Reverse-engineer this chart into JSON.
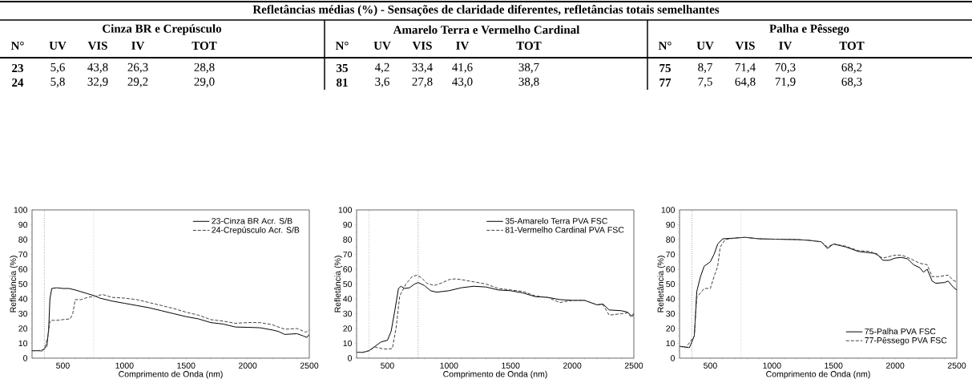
{
  "chart_data": [
    {
      "type": "other",
      "title": "Refletâncias médias (%) - Sensações de claridade diferentes, refletâncias totais semelhantes"
    },
    {
      "type": "line",
      "subtitle": "Cinza BR e Crepúsculo",
      "annotations": [
        "N°",
        "UV",
        "VIS",
        "IV",
        "TOT",
        "23",
        "5,6",
        "43,8",
        "26,3",
        "28,8",
        "24",
        "5,8",
        "32,9",
        "29,2",
        "29,0"
      ],
      "xlabel": "Comprimento de Onda (nm)",
      "ylabel": "Refletância (%)",
      "xlim": [
        250,
        2500
      ],
      "xticks": [
        500,
        1000,
        1500,
        2000,
        2500
      ],
      "ylim": [
        0,
        100
      ],
      "yticks": [
        0,
        10,
        20,
        30,
        40,
        50,
        60,
        70,
        80,
        90,
        100
      ],
      "legend": "top right",
      "ref_lines": [
        {
          "axis": "x",
          "value": 350,
          "line_style": "dotted",
          "color": "#000000"
        },
        {
          "axis": "x",
          "value": 750,
          "line_style": "dotted",
          "color": "#000000"
        }
      ],
      "series": [
        {
          "name": "23-Cinza BR Acr. S/B",
          "color": "#000000",
          "line_style": "solid",
          "x": [
            250,
            300,
            330,
            370,
            385,
            395,
            410,
            450,
            500,
            550,
            600,
            700,
            760,
            800,
            900,
            1000,
            1100,
            1200,
            1300,
            1400,
            1500,
            1600,
            1700,
            1800,
            1900,
            2000,
            2100,
            2200,
            2250,
            2300,
            2400,
            2450,
            2480,
            2500
          ],
          "values": [
            5,
            5,
            4.8,
            8,
            20,
            40,
            47,
            47.5,
            47,
            47,
            46,
            43.5,
            42,
            40.5,
            38.5,
            37,
            35.5,
            34,
            32,
            30,
            28,
            26.5,
            24,
            23,
            21,
            20.8,
            20.5,
            19,
            18,
            16,
            16.5,
            15,
            14,
            16
          ]
        },
        {
          "name": "24-Crepúsculo Acr. S/B",
          "color": "#404040",
          "line_style": "dashed",
          "x": [
            250,
            300,
            350,
            380,
            395,
            400,
            450,
            500,
            560,
            580,
            600,
            650,
            700,
            780,
            820,
            900,
            1000,
            1100,
            1200,
            1300,
            1400,
            1500,
            1600,
            1700,
            1800,
            1900,
            2000,
            2100,
            2200,
            2300,
            2400,
            2470,
            2500
          ],
          "values": [
            5,
            5,
            6,
            15,
            25,
            25.5,
            25.5,
            26,
            26.5,
            30,
            39.5,
            39.5,
            41,
            42,
            43,
            41,
            40.5,
            39.5,
            37.5,
            35.5,
            33.5,
            31,
            29,
            26,
            25,
            23.5,
            24,
            24,
            22.5,
            19.5,
            20,
            17.5,
            19
          ]
        }
      ]
    },
    {
      "type": "line",
      "subtitle": "Amarelo Terra e Vermelho Cardinal",
      "annotations": [
        "N°",
        "UV",
        "VIS",
        "IV",
        "TOT",
        "35",
        "4,2",
        "33,4",
        "41,6",
        "38,7",
        "81",
        "3,6",
        "27,8",
        "43,0",
        "38,8"
      ],
      "xlabel": "Comprimento de Onda (nm)",
      "ylabel": "Refletância (%)",
      "xlim": [
        250,
        2500
      ],
      "xticks": [
        500,
        1000,
        1500,
        2000,
        2500
      ],
      "ylim": [
        0,
        100
      ],
      "yticks": [
        0,
        10,
        20,
        30,
        40,
        50,
        60,
        70,
        80,
        90,
        100
      ],
      "legend": "top right",
      "ref_lines": [
        {
          "axis": "x",
          "value": 350,
          "line_style": "dotted",
          "color": "#000000"
        },
        {
          "axis": "x",
          "value": 750,
          "line_style": "dotted",
          "color": "#000000"
        }
      ],
      "series": [
        {
          "name": "35-Amarelo Terra PVA FSC",
          "color": "#000000",
          "line_style": "solid",
          "x": [
            250,
            300,
            350,
            400,
            450,
            500,
            530,
            560,
            590,
            610,
            640,
            680,
            720,
            750,
            800,
            850,
            900,
            1000,
            1100,
            1200,
            1300,
            1400,
            1500,
            1600,
            1700,
            1800,
            1900,
            2000,
            2100,
            2200,
            2250,
            2300,
            2400,
            2450,
            2480,
            2500
          ],
          "values": [
            4,
            3.8,
            5,
            8,
            11,
            12,
            18,
            32,
            47,
            48.5,
            47,
            47.5,
            50,
            51,
            49,
            45.5,
            44.5,
            45.5,
            47.5,
            48.5,
            48,
            46,
            45.5,
            44,
            41.5,
            41,
            39.5,
            39,
            39,
            36,
            36.5,
            32.5,
            32,
            31,
            28.5,
            30
          ]
        },
        {
          "name": "81-Vermelho Cardinal PVA FSC",
          "color": "#404040",
          "line_style": "dashed",
          "x": [
            250,
            300,
            350,
            400,
            450,
            500,
            540,
            570,
            600,
            650,
            700,
            740,
            780,
            820,
            880,
            950,
            1000,
            1050,
            1100,
            1200,
            1300,
            1400,
            1500,
            1600,
            1700,
            1800,
            1900,
            2000,
            2100,
            2200,
            2250,
            2300,
            2400,
            2450,
            2480,
            2500
          ],
          "values": [
            4,
            4,
            5,
            7.5,
            6.5,
            6,
            6.5,
            20,
            42,
            50,
            55,
            56,
            54,
            50.5,
            49,
            51,
            53,
            53.5,
            53,
            51.5,
            50,
            47,
            46,
            45,
            42,
            41,
            37.5,
            39,
            39,
            36,
            36,
            29,
            30,
            30.5,
            27.5,
            29
          ]
        }
      ]
    },
    {
      "type": "line",
      "subtitle": "Palha e Pêssego",
      "annotations": [
        "N°",
        "UV",
        "VIS",
        "IV",
        "TOT",
        "75",
        "8,7",
        "71,4",
        "70,3",
        "68,2",
        "77",
        "7,5",
        "64,8",
        "71,9",
        "68,3"
      ],
      "xlabel": "Comprimento de Onda (nm)",
      "ylabel": "Refletância (%)",
      "xlim": [
        250,
        2500
      ],
      "xticks": [
        500,
        1000,
        1500,
        2000,
        2500
      ],
      "ylim": [
        0,
        100
      ],
      "yticks": [
        0,
        10,
        20,
        30,
        40,
        50,
        60,
        70,
        80,
        90,
        100
      ],
      "legend": "bottom right",
      "ref_lines": [
        {
          "axis": "x",
          "value": 350,
          "line_style": "dotted",
          "color": "#000000"
        },
        {
          "axis": "x",
          "value": 750,
          "line_style": "dotted",
          "color": "#000000"
        }
      ],
      "series": [
        {
          "name": "75-Palha PVA FSC",
          "color": "#000000",
          "line_style": "solid",
          "x": [
            250,
            300,
            330,
            370,
            390,
            420,
            450,
            500,
            530,
            560,
            600,
            700,
            780,
            900,
            1000,
            1200,
            1300,
            1400,
            1450,
            1500,
            1600,
            1700,
            1800,
            1850,
            1900,
            1950,
            2000,
            2050,
            2100,
            2150,
            2200,
            2230,
            2260,
            2300,
            2330,
            2400,
            2430,
            2470,
            2500
          ],
          "values": [
            8,
            7.5,
            7,
            15,
            45,
            55,
            62,
            65,
            70,
            77,
            80.5,
            81,
            81.5,
            80.5,
            80.3,
            80,
            79.5,
            78.5,
            74,
            77,
            75,
            72,
            71,
            70.5,
            66,
            66,
            67.5,
            68,
            67,
            63,
            61,
            58,
            60,
            52,
            50.5,
            51,
            52,
            48,
            46
          ]
        },
        {
          "name": "77-Pêssego PVA FSC",
          "color": "#404040",
          "line_style": "dashed",
          "x": [
            250,
            300,
            370,
            390,
            420,
            450,
            500,
            530,
            560,
            580,
            620,
            700,
            780,
            900,
            1000,
            1200,
            1300,
            1400,
            1450,
            1500,
            1600,
            1700,
            1800,
            1900,
            2000,
            2050,
            2100,
            2200,
            2260,
            2300,
            2350,
            2430,
            2470,
            2500
          ],
          "values": [
            8,
            7,
            15,
            41,
            44,
            47,
            47,
            55,
            62,
            75,
            80,
            81,
            81.5,
            80.5,
            80.3,
            80,
            79.5,
            78.5,
            75,
            77,
            75.5,
            72.5,
            72,
            67.5,
            69.5,
            69.5,
            68,
            64,
            63,
            55,
            55,
            56,
            52.5,
            51.5
          ]
        }
      ]
    }
  ]
}
